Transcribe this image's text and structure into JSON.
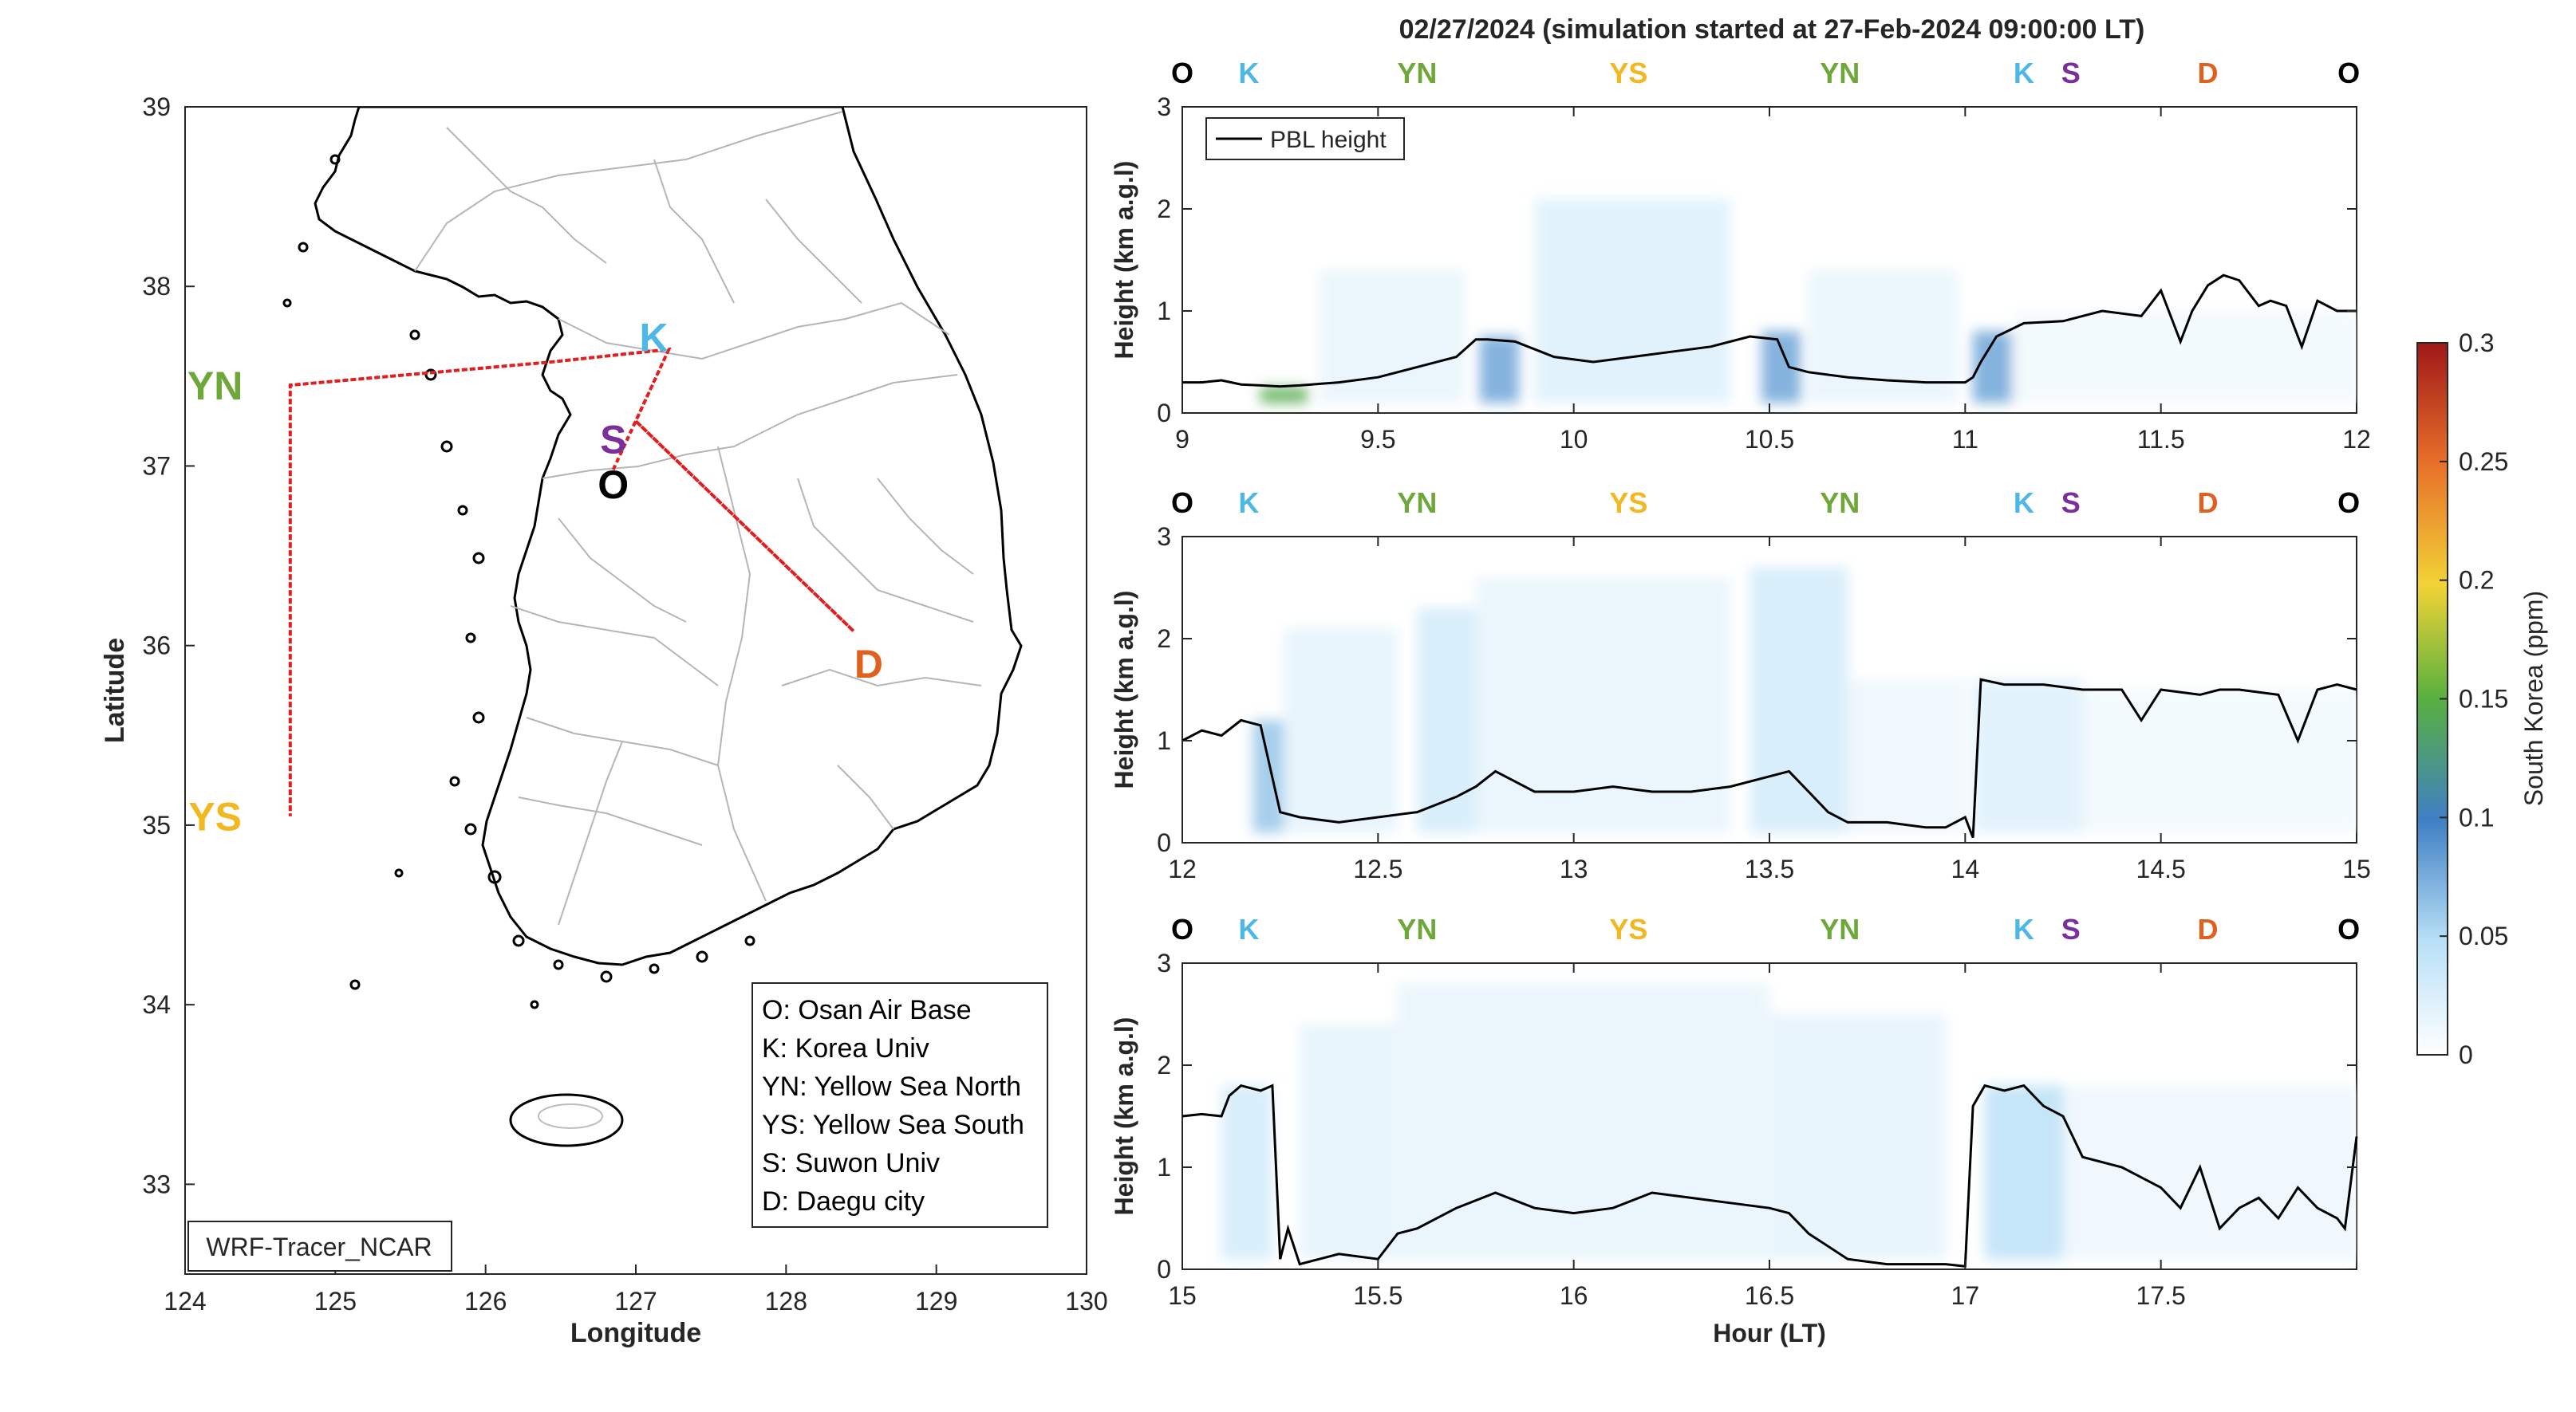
{
  "title": "02/27/2024 (simulation started at 27-Feb-2024 09:00:00 LT)",
  "colors": {
    "O": "#000000",
    "K": "#4db8e8",
    "S": "#7a2f9a",
    "YN": "#6fa83a",
    "YS": "#f2b822",
    "D": "#e06020",
    "pbl": "#000000",
    "route": "#e02020",
    "axis": "#262626"
  },
  "chart_data": [
    {
      "type": "map",
      "xlabel": "Longitude",
      "ylabel": "Latitude",
      "xlim": [
        124,
        130
      ],
      "ylim": [
        32.5,
        39
      ],
      "xticks": [
        "124",
        "125",
        "126",
        "127",
        "128",
        "129",
        "130"
      ],
      "yticks": [
        "33",
        "34",
        "35",
        "36",
        "37",
        "38",
        "39"
      ],
      "sites": [
        {
          "code": "O",
          "lon": 126.85,
          "lat": 36.9
        },
        {
          "code": "K",
          "lon": 127.12,
          "lat": 37.72
        },
        {
          "code": "S",
          "lon": 126.85,
          "lat": 37.15
        },
        {
          "code": "YN",
          "lon": 124.2,
          "lat": 37.45
        },
        {
          "code": "YS",
          "lon": 124.2,
          "lat": 35.05
        },
        {
          "code": "D",
          "lon": 128.55,
          "lat": 35.9
        }
      ],
      "route": [
        {
          "lon": 126.85,
          "lat": 36.98
        },
        {
          "lon": 127.22,
          "lat": 37.65
        },
        {
          "lon": 126.45,
          "lat": 37.58
        },
        {
          "lon": 124.7,
          "lat": 37.45
        },
        {
          "lon": 124.7,
          "lat": 35.05
        },
        {
          "lon": 124.7,
          "lat": 37.45
        },
        {
          "lon": 126.45,
          "lat": 37.58
        },
        {
          "lon": 127.22,
          "lat": 37.65
        },
        {
          "lon": 127.0,
          "lat": 37.25
        },
        {
          "lon": 128.45,
          "lat": 36.08
        },
        {
          "lon": 127.0,
          "lat": 37.25
        },
        {
          "lon": 126.85,
          "lat": 36.98
        }
      ],
      "legend": [
        "O: Osan Air Base",
        "K: Korea Univ",
        "YN: Yellow Sea North",
        "YS: Yellow Sea South",
        "S: Suwon Univ",
        "D: Daegu city"
      ],
      "model_label": "WRF-Tracer_NCAR"
    },
    {
      "type": "line",
      "xlim": [
        9,
        12
      ],
      "ylim": [
        0,
        3
      ],
      "xticks": [
        "9",
        "9.5",
        "10",
        "10.5",
        "11",
        "11.5",
        "12"
      ],
      "yticks": [
        "0",
        "1",
        "2",
        "3"
      ],
      "ylabel": "Height (km a.g.l)",
      "xlabel": "",
      "legend": "PBL height",
      "route_labels": [
        {
          "code": "O",
          "x": 9.0
        },
        {
          "code": "K",
          "x": 9.17
        },
        {
          "code": "YN",
          "x": 9.6
        },
        {
          "code": "YS",
          "x": 10.14
        },
        {
          "code": "YN",
          "x": 10.68
        },
        {
          "code": "K",
          "x": 11.15
        },
        {
          "code": "S",
          "x": 11.27
        },
        {
          "code": "D",
          "x": 11.62
        },
        {
          "code": "O",
          "x": 11.98
        }
      ],
      "pbl": {
        "x": [
          9.0,
          9.05,
          9.1,
          9.15,
          9.2,
          9.25,
          9.3,
          9.4,
          9.5,
          9.6,
          9.7,
          9.75,
          9.78,
          9.85,
          9.95,
          10.05,
          10.15,
          10.25,
          10.35,
          10.45,
          10.52,
          10.55,
          10.6,
          10.7,
          10.8,
          10.9,
          11.0,
          11.02,
          11.04,
          11.08,
          11.15,
          11.25,
          11.35,
          11.45,
          11.5,
          11.55,
          11.58,
          11.62,
          11.66,
          11.7,
          11.75,
          11.78,
          11.82,
          11.86,
          11.9,
          11.95,
          12.0
        ],
        "y": [
          0.3,
          0.3,
          0.32,
          0.28,
          0.27,
          0.26,
          0.27,
          0.3,
          0.35,
          0.45,
          0.55,
          0.72,
          0.72,
          0.7,
          0.55,
          0.5,
          0.55,
          0.6,
          0.65,
          0.75,
          0.72,
          0.45,
          0.4,
          0.35,
          0.32,
          0.3,
          0.3,
          0.35,
          0.5,
          0.75,
          0.88,
          0.9,
          1.0,
          0.95,
          1.2,
          0.7,
          1.0,
          1.25,
          1.35,
          1.3,
          1.05,
          1.1,
          1.05,
          0.65,
          1.1,
          1.0,
          1.0
        ]
      },
      "tracer_bands": [
        {
          "x0": 9.2,
          "x1": 9.32,
          "y1": 0.25,
          "value": 0.09
        },
        {
          "x0": 9.35,
          "x1": 9.72,
          "y1": 1.4,
          "value": 0.01
        },
        {
          "x0": 9.76,
          "x1": 9.86,
          "y1": 0.75,
          "value": 0.05
        },
        {
          "x0": 9.9,
          "x1": 10.4,
          "y1": 2.1,
          "value": 0.015
        },
        {
          "x0": 10.48,
          "x1": 10.58,
          "y1": 0.8,
          "value": 0.05
        },
        {
          "x0": 10.6,
          "x1": 10.98,
          "y1": 1.4,
          "value": 0.01
        },
        {
          "x0": 11.02,
          "x1": 11.12,
          "y1": 0.8,
          "value": 0.05
        },
        {
          "x0": 11.12,
          "x1": 12.0,
          "y1": 1.0,
          "value": 0.006
        }
      ]
    },
    {
      "type": "line",
      "xlim": [
        12,
        15
      ],
      "ylim": [
        0,
        3
      ],
      "xticks": [
        "12",
        "12.5",
        "13",
        "13.5",
        "14",
        "14.5",
        "15"
      ],
      "yticks": [
        "0",
        "1",
        "2",
        "3"
      ],
      "ylabel": "Height (km a.g.l)",
      "xlabel": "",
      "route_labels": [
        {
          "code": "O",
          "x": 12.0
        },
        {
          "code": "K",
          "x": 12.17
        },
        {
          "code": "YN",
          "x": 12.6
        },
        {
          "code": "YS",
          "x": 13.14
        },
        {
          "code": "YN",
          "x": 13.68
        },
        {
          "code": "K",
          "x": 14.15
        },
        {
          "code": "S",
          "x": 14.27
        },
        {
          "code": "D",
          "x": 14.62
        },
        {
          "code": "O",
          "x": 14.98
        }
      ],
      "pbl": {
        "x": [
          12.0,
          12.05,
          12.1,
          12.15,
          12.2,
          12.25,
          12.3,
          12.4,
          12.5,
          12.6,
          12.7,
          12.75,
          12.8,
          12.85,
          12.9,
          13.0,
          13.1,
          13.2,
          13.3,
          13.4,
          13.5,
          13.55,
          13.6,
          13.65,
          13.7,
          13.8,
          13.9,
          13.95,
          14.0,
          14.02,
          14.04,
          14.1,
          14.2,
          14.3,
          14.4,
          14.45,
          14.5,
          14.6,
          14.65,
          14.7,
          14.8,
          14.85,
          14.9,
          14.95,
          15.0
        ],
        "y": [
          1.0,
          1.1,
          1.05,
          1.2,
          1.15,
          0.3,
          0.25,
          0.2,
          0.25,
          0.3,
          0.45,
          0.55,
          0.7,
          0.6,
          0.5,
          0.5,
          0.55,
          0.5,
          0.5,
          0.55,
          0.65,
          0.7,
          0.5,
          0.3,
          0.2,
          0.2,
          0.15,
          0.15,
          0.25,
          0.05,
          1.6,
          1.55,
          1.55,
          1.5,
          1.5,
          1.2,
          1.5,
          1.45,
          1.5,
          1.5,
          1.45,
          1.0,
          1.5,
          1.55,
          1.5
        ]
      },
      "tracer_bands": [
        {
          "x0": 12.18,
          "x1": 12.26,
          "y1": 1.2,
          "value": 0.04
        },
        {
          "x0": 12.26,
          "x1": 12.55,
          "y1": 2.1,
          "value": 0.012
        },
        {
          "x0": 12.6,
          "x1": 12.75,
          "y1": 2.3,
          "value": 0.02
        },
        {
          "x0": 12.75,
          "x1": 13.4,
          "y1": 2.6,
          "value": 0.01
        },
        {
          "x0": 13.45,
          "x1": 13.7,
          "y1": 2.7,
          "value": 0.02
        },
        {
          "x0": 13.7,
          "x1": 14.0,
          "y1": 1.6,
          "value": 0.008
        },
        {
          "x0": 14.02,
          "x1": 14.3,
          "y1": 1.6,
          "value": 0.015
        },
        {
          "x0": 14.3,
          "x1": 15.0,
          "y1": 1.5,
          "value": 0.006
        }
      ]
    },
    {
      "type": "line",
      "xlim": [
        15,
        18
      ],
      "ylim": [
        0,
        3
      ],
      "xticks": [
        "15",
        "15.5",
        "16",
        "16.5",
        "17",
        "17.5"
      ],
      "yticks": [
        "0",
        "1",
        "2",
        "3"
      ],
      "ylabel": "Height (km a.g.l)",
      "xlabel": "Hour (LT)",
      "route_labels": [
        {
          "code": "O",
          "x": 15.0
        },
        {
          "code": "K",
          "x": 15.17
        },
        {
          "code": "YN",
          "x": 15.6
        },
        {
          "code": "YS",
          "x": 16.14
        },
        {
          "code": "YN",
          "x": 16.68
        },
        {
          "code": "K",
          "x": 17.15
        },
        {
          "code": "S",
          "x": 17.27
        },
        {
          "code": "D",
          "x": 17.62
        },
        {
          "code": "O",
          "x": 17.98
        }
      ],
      "pbl": {
        "x": [
          15.0,
          15.05,
          15.1,
          15.12,
          15.15,
          15.2,
          15.23,
          15.25,
          15.27,
          15.3,
          15.35,
          15.4,
          15.5,
          15.55,
          15.6,
          15.7,
          15.8,
          15.9,
          16.0,
          16.1,
          16.2,
          16.3,
          16.4,
          16.5,
          16.55,
          16.6,
          16.7,
          16.8,
          16.9,
          16.95,
          17.0,
          17.02,
          17.05,
          17.1,
          17.15,
          17.2,
          17.25,
          17.3,
          17.4,
          17.5,
          17.55,
          17.6,
          17.65,
          17.7,
          17.75,
          17.8,
          17.85,
          17.9,
          17.95,
          17.97,
          18.0
        ],
        "y": [
          1.5,
          1.52,
          1.5,
          1.7,
          1.8,
          1.75,
          1.8,
          0.1,
          0.4,
          0.05,
          0.1,
          0.15,
          0.1,
          0.35,
          0.4,
          0.6,
          0.75,
          0.6,
          0.55,
          0.6,
          0.75,
          0.7,
          0.65,
          0.6,
          0.55,
          0.35,
          0.1,
          0.05,
          0.05,
          0.05,
          0.03,
          1.6,
          1.8,
          1.75,
          1.8,
          1.6,
          1.5,
          1.1,
          1.0,
          0.8,
          0.6,
          1.0,
          0.4,
          0.6,
          0.7,
          0.5,
          0.8,
          0.6,
          0.5,
          0.4,
          1.3
        ]
      },
      "tracer_bands": [
        {
          "x0": 15.1,
          "x1": 15.23,
          "y1": 1.8,
          "value": 0.02
        },
        {
          "x0": 15.3,
          "x1": 15.55,
          "y1": 2.4,
          "value": 0.012
        },
        {
          "x0": 15.55,
          "x1": 16.5,
          "y1": 2.8,
          "value": 0.01
        },
        {
          "x0": 16.5,
          "x1": 16.95,
          "y1": 2.5,
          "value": 0.012
        },
        {
          "x0": 17.05,
          "x1": 17.25,
          "y1": 1.8,
          "value": 0.03
        },
        {
          "x0": 17.25,
          "x1": 18.0,
          "y1": 1.8,
          "value": 0.008
        }
      ]
    },
    {
      "type": "heatmap",
      "colorbar_label": "South Korea (ppm)",
      "clim": [
        0,
        0.3
      ],
      "ticks": [
        "0",
        "0.05",
        "0.1",
        "0.15",
        "0.2",
        "0.25",
        "0.3"
      ],
      "colormap": [
        "#ffffff",
        "#b8e0f7",
        "#3f7fc4",
        "#58b040",
        "#f2d335",
        "#e8702a",
        "#9e1818"
      ]
    }
  ]
}
